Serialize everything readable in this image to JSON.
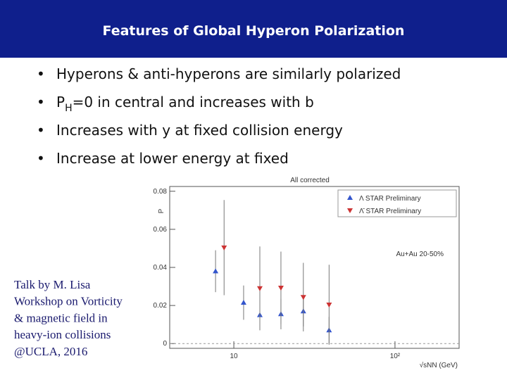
{
  "header": {
    "title": "Features of Global Hyperon Polarization"
  },
  "bullets": [
    [
      "Hyperons & anti-hyperons are similarly polarized"
    ],
    [
      "P",
      "H",
      "=0 in central and increases with b"
    ],
    [
      "Increases with y at fixed collision energy"
    ],
    [
      "Increase at lower energy at fixed"
    ]
  ],
  "citation": [
    "Talk by M. Lisa",
    "Workshop on Vorticity",
    "& magnetic field in",
    "heavy-ion collisions",
    "@UCLA, 2016"
  ],
  "chart_data": {
    "type": "scatter",
    "title": "All corrected",
    "ylabel": "P",
    "xlabel": "√sNN (GeV)",
    "annotation": "Au+Au 20-50%",
    "xscale": "log",
    "xlim": [
      4,
      250
    ],
    "xticks": [
      10,
      {
        "value": 100,
        "label": "10²"
      }
    ],
    "ylim": [
      -0.0025,
      0.0825
    ],
    "yticks": [
      0,
      0.02,
      0.04,
      0.06,
      0.08
    ],
    "legend": "upper right",
    "series": [
      {
        "name": "Λ STAR Preliminary",
        "color": "#3355cc",
        "marker": "triangle-up",
        "x": [
          7.7,
          11.5,
          14.5,
          19.6,
          27,
          39
        ],
        "values": [
          0.038,
          0.0215,
          0.015,
          0.0155,
          0.017,
          0.007
        ],
        "errors": [
          0.011,
          0.009,
          0.008,
          0.008,
          0.008,
          0.007
        ]
      },
      {
        "name": "Λ̄ STAR Preliminary",
        "color": "#cc3333",
        "marker": "triangle-down",
        "x": [
          8.7,
          14.5,
          19.6,
          27,
          39
        ],
        "values": [
          0.0504,
          0.029,
          0.0293,
          0.0244,
          0.0204
        ],
        "errors": [
          0.025,
          0.022,
          0.019,
          0.018,
          0.021
        ]
      }
    ]
  }
}
